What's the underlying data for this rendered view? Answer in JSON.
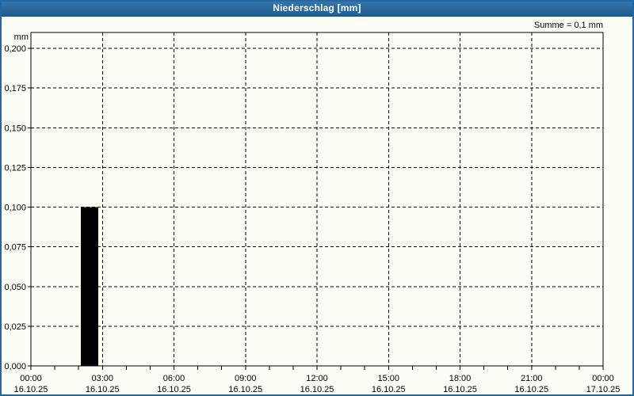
{
  "window": {
    "title": "Niederschlag [mm]"
  },
  "annotation": "Summe = 0,1 mm",
  "colors": {
    "titlebar": "#2368a2",
    "titlebar_text": "#ffffff",
    "panel_border": "#2368a2",
    "panel_bg": "#fdfdf6",
    "plot_line": "#000000",
    "grid": "#000000",
    "bar": "#000000",
    "label_text": "#000000"
  },
  "chart_data": {
    "type": "bar",
    "title": "Niederschlag [mm]",
    "ylabel": "mm",
    "annotation": "Summe = 0,1 mm",
    "grid": true,
    "ylim": [
      0,
      0.21
    ],
    "yticks": [
      {
        "value": 0.0,
        "label": "0,000"
      },
      {
        "value": 0.025,
        "label": "0,025"
      },
      {
        "value": 0.05,
        "label": "0,050"
      },
      {
        "value": 0.075,
        "label": "0,075"
      },
      {
        "value": 0.1,
        "label": "0,100"
      },
      {
        "value": 0.125,
        "label": "0,125"
      },
      {
        "value": 0.15,
        "label": "0,150"
      },
      {
        "value": 0.175,
        "label": "0,175"
      },
      {
        "value": 0.2,
        "label": "0,200"
      }
    ],
    "x_range_hours": [
      0,
      24
    ],
    "minor_tick_hours": 1,
    "xticks": [
      {
        "hour": 0,
        "time": "00:00",
        "date": "16.10.25"
      },
      {
        "hour": 3,
        "time": "03:00",
        "date": "16.10.25"
      },
      {
        "hour": 6,
        "time": "06:00",
        "date": "16.10.25"
      },
      {
        "hour": 9,
        "time": "09:00",
        "date": "16.10.25"
      },
      {
        "hour": 12,
        "time": "12:00",
        "date": "16.10.25"
      },
      {
        "hour": 15,
        "time": "15:00",
        "date": "16.10.25"
      },
      {
        "hour": 18,
        "time": "18:00",
        "date": "16.10.25"
      },
      {
        "hour": 21,
        "time": "21:00",
        "date": "16.10.25"
      },
      {
        "hour": 24,
        "time": "00:00",
        "date": "17.10.25"
      }
    ],
    "bars": [
      {
        "hour_start": 2.1,
        "hour_end": 2.83,
        "value": 0.1
      }
    ]
  }
}
